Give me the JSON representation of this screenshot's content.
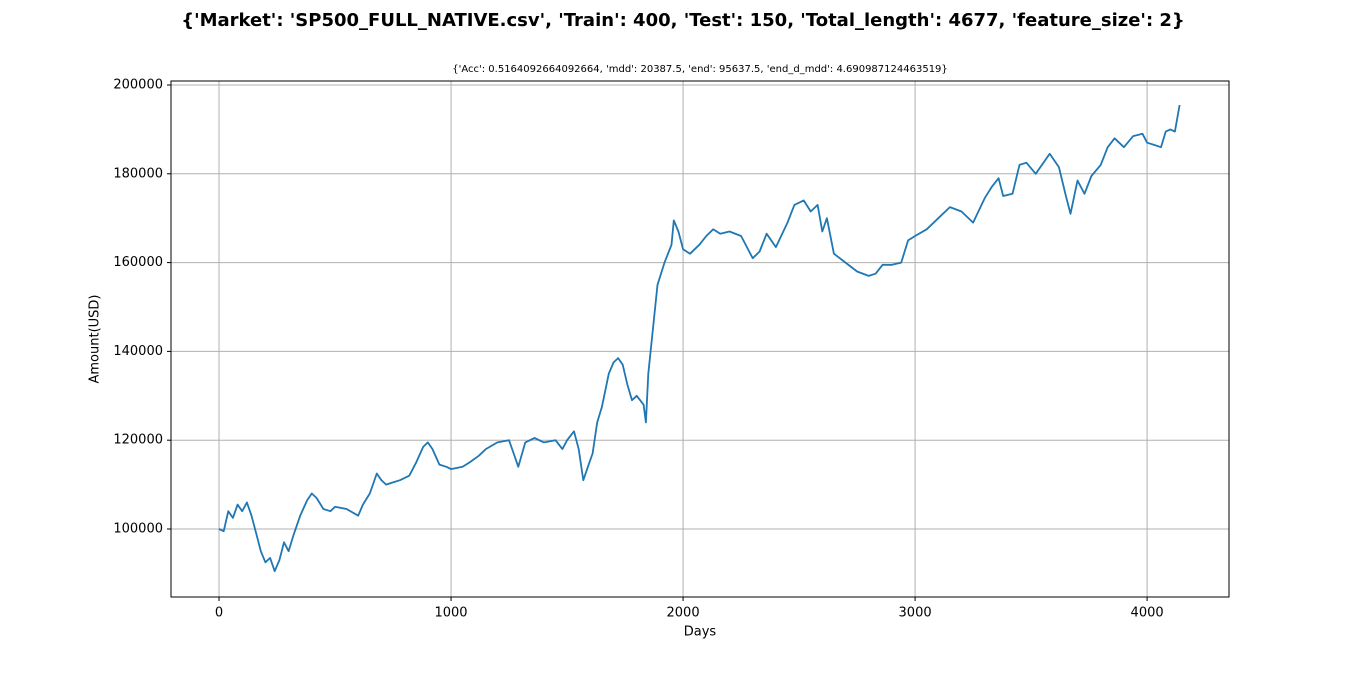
{
  "chart_data": {
    "type": "line",
    "title": "{'Market': 'SP500_FULL_NATIVE.csv', 'Train': 400, 'Test': 150, 'Total_length': 4677, 'feature_size': 2}",
    "subtitle": "{'Acc': 0.5164092664092664, 'mdd': 20387.5, 'end': 95637.5, 'end_d_mdd': 4.690987124463519}",
    "x_label": "Days",
    "y_label": "Amount(USD)",
    "x": [
      0,
      20,
      40,
      60,
      80,
      100,
      120,
      140,
      160,
      180,
      200,
      220,
      240,
      260,
      280,
      300,
      320,
      350,
      380,
      400,
      420,
      450,
      480,
      500,
      550,
      600,
      620,
      650,
      680,
      700,
      720,
      750,
      780,
      820,
      850,
      880,
      900,
      920,
      950,
      980,
      1000,
      1050,
      1080,
      1120,
      1150,
      1200,
      1250,
      1270,
      1290,
      1320,
      1360,
      1400,
      1450,
      1480,
      1500,
      1530,
      1550,
      1570,
      1590,
      1610,
      1630,
      1650,
      1680,
      1700,
      1720,
      1740,
      1760,
      1780,
      1800,
      1830,
      1840,
      1850,
      1870,
      1890,
      1920,
      1950,
      1960,
      1980,
      2000,
      2030,
      2070,
      2100,
      2130,
      2160,
      2200,
      2250,
      2300,
      2330,
      2360,
      2400,
      2450,
      2480,
      2520,
      2550,
      2580,
      2600,
      2620,
      2650,
      2700,
      2750,
      2800,
      2830,
      2860,
      2900,
      2940,
      2970,
      3000,
      3050,
      3100,
      3150,
      3200,
      3250,
      3300,
      3330,
      3360,
      3380,
      3420,
      3450,
      3480,
      3520,
      3560,
      3580,
      3620,
      3650,
      3670,
      3700,
      3730,
      3760,
      3800,
      3830,
      3860,
      3900,
      3940,
      3980,
      4000,
      4030,
      4060,
      4080,
      4100,
      4120,
      4140
    ],
    "series": [
      {
        "name": "Amount",
        "color": "#1f77b4",
        "values": [
          100000,
          99500,
          104000,
          102500,
          105500,
          104000,
          106000,
          103000,
          99000,
          95000,
          92500,
          93500,
          90500,
          93000,
          97000,
          95000,
          98500,
          103000,
          106500,
          108000,
          107000,
          104500,
          104000,
          105000,
          104500,
          103000,
          105500,
          108000,
          112500,
          111000,
          110000,
          110500,
          111000,
          112000,
          115000,
          118500,
          119500,
          118000,
          114500,
          114000,
          113500,
          114000,
          115000,
          116500,
          118000,
          119500,
          120000,
          117000,
          114000,
          119500,
          120500,
          119500,
          120000,
          118000,
          120000,
          122000,
          118000,
          111000,
          114000,
          117000,
          124000,
          127500,
          135000,
          137500,
          138500,
          137000,
          132500,
          129000,
          130000,
          128000,
          124000,
          135000,
          145000,
          155000,
          160000,
          164000,
          169500,
          167000,
          163000,
          162000,
          164000,
          166000,
          167500,
          166500,
          167000,
          166000,
          161000,
          162500,
          166500,
          163500,
          169000,
          173000,
          174000,
          171500,
          173000,
          167000,
          170000,
          162000,
          160000,
          158000,
          157000,
          157500,
          159500,
          159500,
          160000,
          165000,
          166000,
          167500,
          170000,
          172500,
          171500,
          169000,
          174500,
          177000,
          179000,
          175000,
          175500,
          182000,
          182500,
          180000,
          183000,
          184500,
          181500,
          175000,
          171000,
          178500,
          175500,
          179500,
          182000,
          186000,
          188000,
          186000,
          188500,
          189000,
          187000,
          186500,
          186000,
          189500,
          190000,
          189500,
          195500
        ]
      }
    ],
    "xlim": [
      -207,
      4353
    ],
    "ylim": [
      84685,
      200900
    ],
    "xticks": [
      0,
      1000,
      2000,
      3000,
      4000
    ],
    "yticks": [
      100000,
      120000,
      140000,
      160000,
      180000,
      200000
    ],
    "grid": true
  }
}
